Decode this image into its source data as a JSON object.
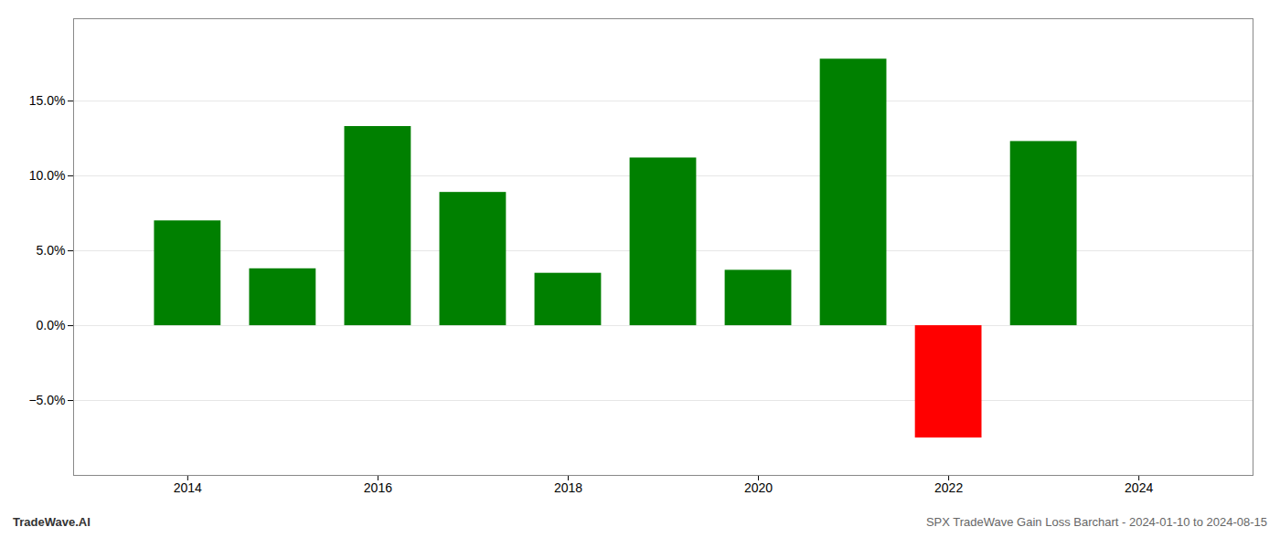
{
  "chart_data": {
    "type": "bar",
    "title": "SPX TradeWave Gain Loss Barchart - 2024-01-10 to 2024-08-15",
    "annotations": [
      "TradeWave.AI"
    ],
    "x": [
      2014,
      2015,
      2016,
      2017,
      2018,
      2019,
      2020,
      2021,
      2022,
      2023
    ],
    "values": [
      0.07,
      0.038,
      0.133,
      0.089,
      0.035,
      0.112,
      0.037,
      0.178,
      -0.075,
      0.123
    ],
    "colors": [
      "#008000",
      "#008000",
      "#008000",
      "#008000",
      "#008000",
      "#008000",
      "#008000",
      "#008000",
      "#ff0000",
      "#008000"
    ],
    "xlim": [
      2012.8,
      2025.2
    ],
    "xticks": [
      2014,
      2016,
      2018,
      2020,
      2022,
      2024
    ],
    "ylim": [
      -0.1,
      0.205
    ],
    "yticks": [
      {
        "value": -0.05,
        "label": "−5.0%"
      },
      {
        "value": 0.0,
        "label": "0.0%"
      },
      {
        "value": 0.05,
        "label": "5.0%"
      },
      {
        "value": 0.1,
        "label": "10.0%"
      },
      {
        "value": 0.15,
        "label": "15.0%"
      }
    ],
    "grid": true
  }
}
